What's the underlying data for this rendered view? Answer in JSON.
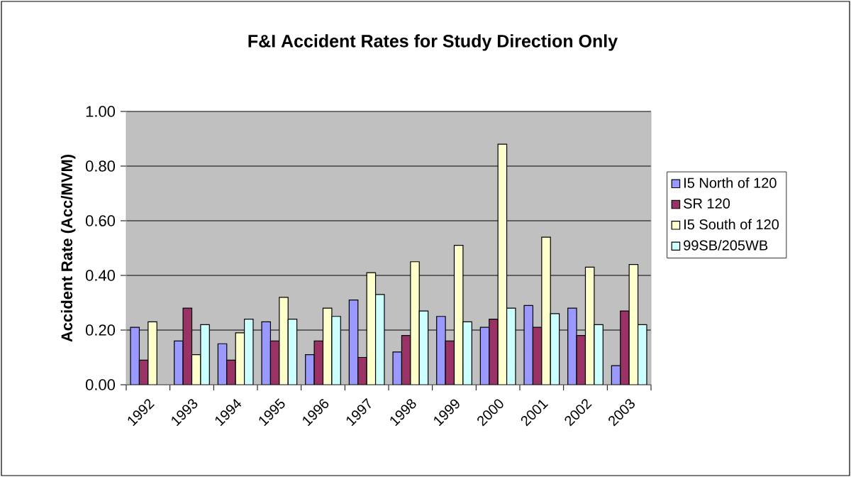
{
  "chart_data": {
    "type": "bar",
    "title": "F&I Accident Rates for Study Direction Only",
    "ylabel": "Accident Rate (Acc/MVM)",
    "categories": [
      "1992",
      "1993",
      "1994",
      "1995",
      "1996",
      "1997",
      "1998",
      "1999",
      "2000",
      "2001",
      "2002",
      "2003"
    ],
    "series": [
      {
        "name": "I5 North of 120",
        "color": "#9999ff",
        "values": [
          0.21,
          0.16,
          0.15,
          0.23,
          0.11,
          0.31,
          0.12,
          0.25,
          0.21,
          0.29,
          0.28,
          0.07
        ]
      },
      {
        "name": "SR 120",
        "color": "#993366",
        "values": [
          0.09,
          0.28,
          0.09,
          0.16,
          0.16,
          0.1,
          0.18,
          0.16,
          0.24,
          0.21,
          0.18,
          0.27
        ]
      },
      {
        "name": "I5 South of 120",
        "color": "#ffffcc",
        "values": [
          0.23,
          0.11,
          0.19,
          0.32,
          0.28,
          0.41,
          0.45,
          0.51,
          0.88,
          0.54,
          0.43,
          0.44
        ]
      },
      {
        "name": "99SB/205WB",
        "color": "#ccffff",
        "values": [
          null,
          0.22,
          0.24,
          0.24,
          0.25,
          0.33,
          0.27,
          0.23,
          0.28,
          0.26,
          0.22,
          0.22
        ]
      }
    ],
    "ylim": [
      0,
      1
    ],
    "yticks": [
      {
        "value": 0,
        "label": "0.00"
      },
      {
        "value": 0.2,
        "label": "0.20"
      },
      {
        "value": 0.4,
        "label": "0.40"
      },
      {
        "value": 0.6,
        "label": "0.60"
      },
      {
        "value": 0.8,
        "label": "0.80"
      },
      {
        "value": 1,
        "label": "1.00"
      }
    ],
    "grid": "y",
    "legend": "right"
  }
}
